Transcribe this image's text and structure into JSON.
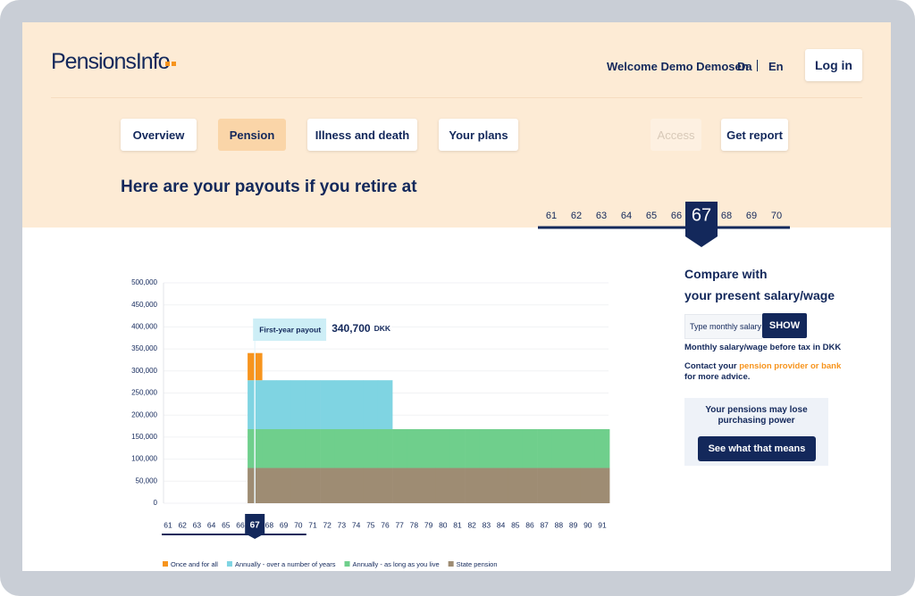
{
  "header": {
    "logo": "PensionsInfo",
    "welcome": "Welcome Demo Demosen",
    "languages": [
      "Da",
      "En"
    ],
    "login": "Log in"
  },
  "nav": [
    "Overview",
    "Pension",
    "Illness and death",
    "Your plans",
    "Access",
    "Get report"
  ],
  "nav_active": "Pension",
  "nav_disabled": "Access",
  "heading": "Here are your payouts if you retire at",
  "age_selector": {
    "ages": [
      61,
      62,
      63,
      64,
      65,
      66,
      67,
      68,
      69,
      70
    ],
    "selected": 67
  },
  "sidebar": {
    "compare_title_lines": [
      "Compare with",
      "your present salary/wage"
    ],
    "input_placeholder": "Type monthly salary",
    "show_button": "SHOW",
    "hint": "Monthly salary/wage before tax in DKK",
    "contact": {
      "before": "Contact your",
      "link": "pension provider or bank",
      "after": "for more advice."
    },
    "notice_lines": [
      "Your pensions may lose",
      "purchasing power"
    ],
    "notice_button": "See what that means"
  },
  "chart_data": {
    "type": "stacked_bar",
    "categories": [
      61,
      62,
      63,
      64,
      65,
      66,
      67,
      68,
      69,
      70,
      71,
      72,
      73,
      74,
      75,
      76,
      77,
      78,
      79,
      80,
      81,
      82,
      83,
      84,
      85,
      86,
      87,
      88,
      89,
      90,
      91
    ],
    "series": [
      {
        "name": "Once and for all",
        "color": "#f7941d",
        "values": [
          null,
          null,
          null,
          null,
          null,
          null,
          61700,
          null,
          null,
          null,
          null,
          null,
          null,
          null,
          null,
          null,
          null,
          null,
          null,
          null,
          null,
          null,
          null,
          null,
          null,
          null,
          null,
          null,
          null,
          null,
          null
        ]
      },
      {
        "name": "Annually - over a number of years",
        "color": "#7fd4e2",
        "values": [
          null,
          null,
          null,
          null,
          null,
          null,
          111000,
          111000,
          111000,
          111000,
          111000,
          111000,
          111000,
          111000,
          111000,
          111000,
          null,
          null,
          null,
          null,
          null,
          null,
          null,
          null,
          null,
          null,
          null,
          null,
          null,
          null,
          null
        ]
      },
      {
        "name": "Annually - as long as you live",
        "color": "#6fcf8c",
        "values": [
          null,
          null,
          null,
          null,
          null,
          null,
          88000,
          88000,
          88000,
          88000,
          88000,
          88000,
          88000,
          88000,
          88000,
          88000,
          88000,
          88000,
          88000,
          88000,
          88000,
          88000,
          88000,
          88000,
          88000,
          88000,
          88000,
          88000,
          88000,
          88000,
          88000
        ]
      },
      {
        "name": "State pension",
        "color": "#9e8c73",
        "values": [
          null,
          null,
          null,
          null,
          null,
          null,
          80000,
          80000,
          80000,
          80000,
          80000,
          80000,
          80000,
          80000,
          80000,
          80000,
          80000,
          80000,
          80000,
          80000,
          80000,
          80000,
          80000,
          80000,
          80000,
          80000,
          80000,
          80000,
          80000,
          80000,
          80000
        ]
      }
    ],
    "ylim": [
      0,
      500000
    ],
    "yticks": [
      0,
      {
        "value": 50000,
        "label": "50,000"
      },
      {
        "value": 100000,
        "label": "100,000"
      },
      {
        "value": 150000,
        "label": "150,000"
      },
      {
        "value": 200000,
        "label": "200,000"
      },
      {
        "value": 250000,
        "label": "250,000"
      },
      {
        "value": 300000,
        "label": "300,000"
      },
      {
        "value": 350000,
        "label": "350,000"
      },
      {
        "value": 400000,
        "label": "400,000"
      },
      {
        "value": 450000,
        "label": "450,000"
      },
      {
        "value": 500000,
        "label": "500,000"
      }
    ],
    "grid": true,
    "tooltip": {
      "title": "First-year payout",
      "amount": "340,700",
      "unit": "DKK"
    },
    "legend": "bottom"
  }
}
